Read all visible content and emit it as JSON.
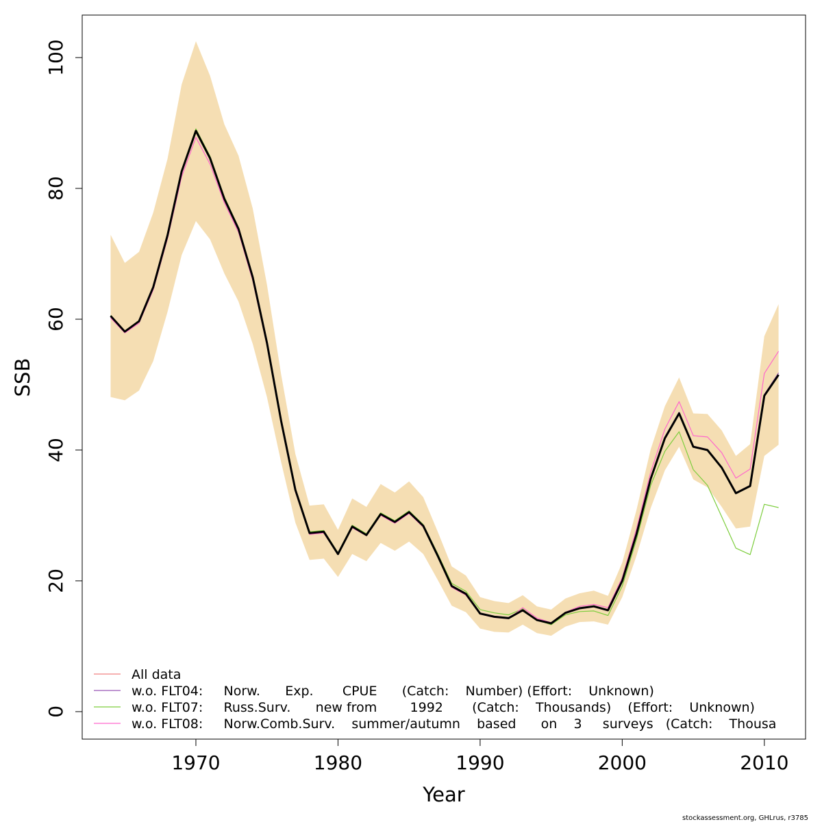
{
  "chart_data": {
    "type": "line",
    "xlabel": "Year",
    "ylabel": "SSB",
    "xlim": [
      1962,
      2012.9
    ],
    "ylim": [
      -4.2,
      106.5
    ],
    "x_ticks": [
      1970,
      1980,
      1990,
      2000,
      2010
    ],
    "y_ticks": [
      0,
      20,
      40,
      60,
      80,
      100
    ],
    "grid": false,
    "legend_position": "bottom-left",
    "legend_lines": [
      {
        "text": "All data",
        "color": "#f08080"
      },
      {
        "text": "w.o. FLT04:     Norw.      Exp.       CPUE      (Catch:    Number) (Effort:    Unknown)",
        "color": "#9b59b6"
      },
      {
        "text": "w.o. FLT07:     Russ.Surv.      new from        1992       (Catch:    Thousands)    (Effort:    Unknown)",
        "color": "#7ccd3c"
      },
      {
        "text": "w.o. FLT08:     Norw.Comb.Surv.    summer/autumn    based      on    3     surveys   (Catch:    Thousa",
        "color": "#ff66cc"
      }
    ],
    "band": {
      "color": "#f5deb3",
      "x": [
        1964,
        1965,
        1966,
        1967,
        1968,
        1969,
        1970,
        1971,
        1972,
        1973,
        1974,
        1975,
        1976,
        1977,
        1978,
        1979,
        1980,
        1981,
        1982,
        1983,
        1984,
        1985,
        1986,
        1987,
        1988,
        1989,
        1990,
        1991,
        1992,
        1993,
        1994,
        1995,
        1996,
        1997,
        1998,
        1999,
        2000,
        2001,
        2002,
        2003,
        2004,
        2005,
        2006,
        2007,
        2008,
        2009,
        2010,
        2011
      ],
      "upper": [
        72.9,
        68.6,
        70.3,
        76.3,
        84.5,
        95.9,
        102.5,
        97.2,
        89.8,
        85.0,
        76.9,
        65.3,
        51.5,
        39.4,
        31.5,
        31.7,
        27.8,
        32.6,
        31.3,
        34.8,
        33.5,
        35.2,
        32.8,
        27.6,
        22.2,
        20.8,
        17.5,
        16.9,
        16.6,
        17.8,
        16.1,
        15.6,
        17.3,
        18.1,
        18.5,
        17.7,
        22.8,
        30.8,
        40.1,
        46.7,
        51.1,
        45.6,
        45.5,
        43.0,
        39.1,
        40.9,
        57.4,
        62.3
      ],
      "lower": [
        48.1,
        47.6,
        49.1,
        53.6,
        61.1,
        69.8,
        75.0,
        72.2,
        67.0,
        62.7,
        56.2,
        48.1,
        38.1,
        28.9,
        23.2,
        23.4,
        20.6,
        24.1,
        23.0,
        25.8,
        24.6,
        26.0,
        24.1,
        20.2,
        16.2,
        15.2,
        12.7,
        12.2,
        12.1,
        13.3,
        12.0,
        11.6,
        13.0,
        13.7,
        13.8,
        13.3,
        17.5,
        23.8,
        31.1,
        36.9,
        40.5,
        35.5,
        34.3,
        31.3,
        28.0,
        28.3,
        39.1,
        40.8
      ]
    },
    "x": [
      1964,
      1965,
      1966,
      1967,
      1968,
      1969,
      1970,
      1971,
      1972,
      1973,
      1974,
      1975,
      1976,
      1977,
      1978,
      1979,
      1980,
      1981,
      1982,
      1983,
      1984,
      1985,
      1986,
      1987,
      1988,
      1989,
      1990,
      1991,
      1992,
      1993,
      1994,
      1995,
      1996,
      1997,
      1998,
      1999,
      2000,
      2001,
      2002,
      2003,
      2004,
      2005,
      2006,
      2007,
      2008,
      2009,
      2010,
      2011
    ],
    "series": [
      {
        "name": "All data",
        "color": "#f08080",
        "values": [
          60.5,
          58.1,
          59.7,
          64.9,
          72.7,
          82.5,
          88.7,
          84.5,
          78.3,
          73.7,
          66.3,
          56.3,
          44.4,
          33.8,
          27.3,
          27.5,
          24.1,
          28.3,
          27.0,
          30.2,
          29.0,
          30.5,
          28.4,
          23.9,
          19.2,
          18.0,
          15.0,
          14.5,
          14.3,
          15.5,
          14.0,
          13.5,
          15.1,
          15.8,
          16.1,
          15.5,
          20.0,
          27.1,
          35.6,
          41.8,
          45.6,
          40.5,
          40.0,
          37.3,
          33.4,
          34.5,
          48.3,
          51.4
        ]
      },
      {
        "name": "w.o. FLT04",
        "color": "#9b59b6",
        "values": [
          60.6,
          58.1,
          59.7,
          65.0,
          72.9,
          82.7,
          89.0,
          84.7,
          78.5,
          73.9,
          66.5,
          56.4,
          44.5,
          33.9,
          27.4,
          27.6,
          24.2,
          28.4,
          27.1,
          30.3,
          29.1,
          30.6,
          28.5,
          24.0,
          19.3,
          18.1,
          15.1,
          14.6,
          14.4,
          15.6,
          14.1,
          13.6,
          15.2,
          15.9,
          16.2,
          15.6,
          20.1,
          27.2,
          35.7,
          42.0,
          45.8,
          40.6,
          40.1,
          37.4,
          33.5,
          34.6,
          48.5,
          51.8
        ]
      },
      {
        "name": "w.o. FLT07",
        "color": "#7ccd3c",
        "values": [
          60.6,
          58.2,
          59.8,
          65.0,
          72.9,
          82.8,
          89.1,
          84.9,
          78.7,
          74.0,
          66.6,
          56.5,
          44.6,
          34.0,
          27.5,
          27.7,
          24.3,
          28.5,
          27.2,
          30.4,
          29.2,
          30.7,
          28.6,
          24.2,
          19.6,
          18.4,
          15.6,
          15.1,
          14.8,
          15.7,
          14.0,
          13.3,
          14.8,
          15.3,
          15.4,
          14.7,
          19.2,
          26.3,
          34.6,
          39.8,
          42.8,
          37.0,
          34.6,
          29.8,
          25.0,
          24.0,
          31.7,
          31.2
        ]
      },
      {
        "name": "w.o. FLT08",
        "color": "#ff66cc",
        "values": [
          60.2,
          57.9,
          59.4,
          64.5,
          72.3,
          81.8,
          87.8,
          83.7,
          77.8,
          73.3,
          65.9,
          56.0,
          44.1,
          33.6,
          27.1,
          27.3,
          24.0,
          28.1,
          26.9,
          30.0,
          28.8,
          30.3,
          28.2,
          23.8,
          19.0,
          17.8,
          14.9,
          14.4,
          14.2,
          15.9,
          14.3,
          13.6,
          15.2,
          16.1,
          16.4,
          15.9,
          20.5,
          27.9,
          36.6,
          43.2,
          47.4,
          42.2,
          42.0,
          39.6,
          35.7,
          37.1,
          51.7,
          55.1
        ]
      },
      {
        "color": "#000000",
        "values": [
          60.5,
          58.1,
          59.7,
          64.9,
          72.8,
          82.6,
          88.8,
          84.6,
          78.4,
          73.8,
          66.4,
          56.4,
          44.4,
          33.9,
          27.3,
          27.5,
          24.1,
          28.3,
          27.0,
          30.2,
          29.0,
          30.5,
          28.4,
          23.9,
          19.2,
          18.0,
          15.0,
          14.5,
          14.3,
          15.5,
          14.0,
          13.5,
          15.1,
          15.8,
          16.1,
          15.5,
          20.0,
          27.1,
          35.6,
          41.8,
          45.6,
          40.5,
          40.0,
          37.3,
          33.4,
          34.5,
          48.3,
          51.5
        ]
      }
    ]
  },
  "footer": "stockassessment.org, GHLrus, r3785"
}
